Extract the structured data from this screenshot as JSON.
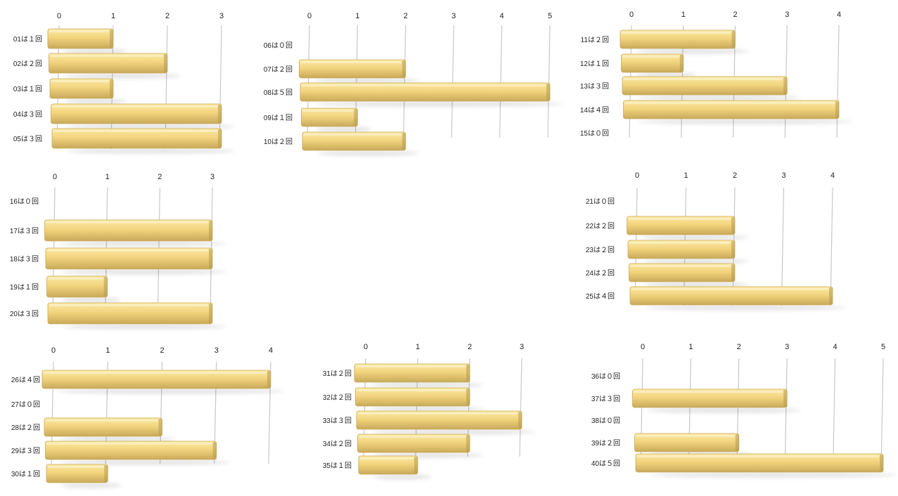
{
  "chart_data": [
    {
      "type": "bar",
      "orientation": "horizontal",
      "panel": "p1",
      "xlim": [
        0,
        3
      ],
      "ticks": [
        "0",
        "1",
        "2",
        "3"
      ],
      "categories": [
        "01は１回",
        "02は２回",
        "03は１回",
        "04は３回",
        "05は３回"
      ],
      "values": [
        1,
        2,
        1,
        3,
        3
      ]
    },
    {
      "type": "bar",
      "orientation": "horizontal",
      "panel": "p2",
      "xlim": [
        0,
        5
      ],
      "ticks": [
        "0",
        "1",
        "2",
        "3",
        "4",
        "5"
      ],
      "categories": [
        "06は０回",
        "07は２回",
        "08は５回",
        "09は１回",
        "10は２回"
      ],
      "values": [
        0,
        2,
        5,
        1,
        2
      ]
    },
    {
      "type": "bar",
      "orientation": "horizontal",
      "panel": "p3",
      "xlim": [
        0,
        4
      ],
      "ticks": [
        "0",
        "1",
        "2",
        "3",
        "4"
      ],
      "categories": [
        "11は２回",
        "12は１回",
        "13は３回",
        "14は４回",
        "15は０回"
      ],
      "values": [
        2,
        1,
        3,
        4,
        0
      ]
    },
    {
      "type": "bar",
      "orientation": "horizontal",
      "panel": "p4",
      "xlim": [
        0,
        3
      ],
      "ticks": [
        "0",
        "1",
        "2",
        "3"
      ],
      "categories": [
        "16は０回",
        "17は３回",
        "18は３回",
        "19は１回",
        "20は３回"
      ],
      "values": [
        0,
        3,
        3,
        1,
        3
      ]
    },
    {
      "type": "bar",
      "orientation": "horizontal",
      "panel": "p5",
      "xlim": [
        0,
        4
      ],
      "ticks": [
        "0",
        "1",
        "2",
        "3",
        "4"
      ],
      "categories": [
        "21は０回",
        "22は２回",
        "23は２回",
        "24は２回",
        "25は４回"
      ],
      "values": [
        0,
        2,
        2,
        2,
        4
      ]
    },
    {
      "type": "bar",
      "orientation": "horizontal",
      "panel": "p6",
      "xlim": [
        0,
        4
      ],
      "ticks": [
        "0",
        "1",
        "2",
        "3",
        "4"
      ],
      "categories": [
        "26は４回",
        "27は０回",
        "28は２回",
        "29は３回",
        "30は１回"
      ],
      "values": [
        4,
        0,
        2,
        3,
        1
      ]
    },
    {
      "type": "bar",
      "orientation": "horizontal",
      "panel": "p7",
      "xlim": [
        0,
        3
      ],
      "ticks": [
        "0",
        "1",
        "2",
        "3"
      ],
      "categories": [
        "31は２回",
        "32は２回",
        "33は３回",
        "34は２回",
        "35は１回"
      ],
      "values": [
        2,
        2,
        3,
        2,
        1
      ]
    },
    {
      "type": "bar",
      "orientation": "horizontal",
      "panel": "p8",
      "xlim": [
        0,
        5
      ],
      "ticks": [
        "0",
        "1",
        "2",
        "3",
        "4",
        "5"
      ],
      "categories": [
        "36は０回",
        "37は３回",
        "38は０回",
        "39は２回",
        "40は５回"
      ],
      "values": [
        0,
        3,
        0,
        2,
        5
      ]
    }
  ],
  "colors": {
    "bar_top": "#fbeaa4",
    "bar_mid": "#f2d47e",
    "bar_bottom": "#c9a959",
    "bar_end": "#b59a52",
    "grid": "#c8c8c8",
    "text": "#222222"
  }
}
